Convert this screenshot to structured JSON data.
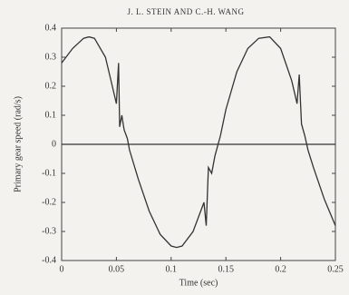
{
  "header": "J. L. STEIN AND C.-H. WANG",
  "chart_data": {
    "type": "line",
    "x_label": "Time (sec)",
    "y_label": "Primary gear speed (rad/s)",
    "x": [
      0,
      0.01,
      0.02,
      0.025,
      0.03,
      0.04,
      0.045,
      0.05,
      0.052,
      0.053,
      0.055,
      0.057,
      0.06,
      0.062,
      0.07,
      0.08,
      0.09,
      0.1,
      0.105,
      0.11,
      0.12,
      0.13,
      0.132,
      0.134,
      0.137,
      0.14,
      0.145,
      0.15,
      0.16,
      0.17,
      0.18,
      0.19,
      0.2,
      0.21,
      0.215,
      0.217,
      0.219,
      0.222,
      0.225,
      0.23,
      0.24,
      0.25
    ],
    "series": [
      {
        "color": "#333333",
        "values": [
          0.28,
          0.33,
          0.365,
          0.37,
          0.365,
          0.3,
          0.22,
          0.14,
          0.28,
          0.06,
          0.1,
          0.05,
          0.02,
          -0.02,
          -0.12,
          -0.23,
          -0.31,
          -0.35,
          -0.355,
          -0.35,
          -0.3,
          -0.2,
          -0.28,
          -0.08,
          -0.1,
          -0.04,
          0.03,
          0.12,
          0.25,
          0.33,
          0.365,
          0.37,
          0.33,
          0.22,
          0.14,
          0.24,
          0.07,
          0.03,
          -0.02,
          -0.08,
          -0.19,
          -0.28
        ]
      }
    ],
    "xlim": [
      0,
      0.25
    ],
    "xticks": [
      0,
      0.05,
      0.1,
      0.15,
      0.2,
      0.25
    ],
    "ylim": [
      -0.4,
      0.4
    ],
    "yticks": [
      -0.4,
      -0.3,
      -0.2,
      -0.1,
      0,
      0.1,
      0.2,
      0.3,
      0.4
    ],
    "zero_line": true
  }
}
